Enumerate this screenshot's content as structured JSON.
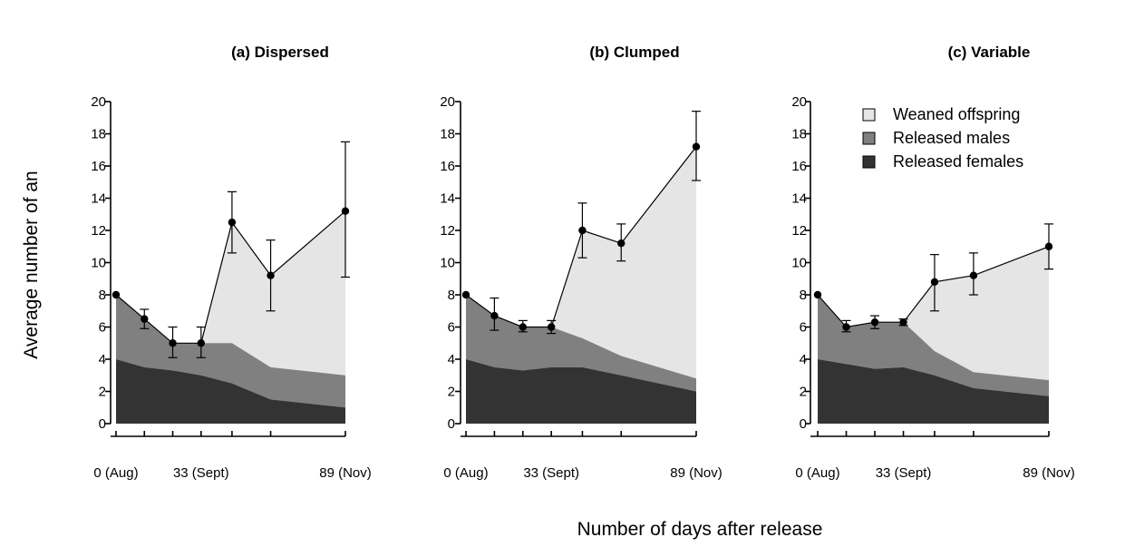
{
  "figure": {
    "ylabel": "Average number of an",
    "xlabel": "Number of days after release",
    "legend": {
      "placement": "top-right of panel (c)",
      "items": [
        {
          "label": "Weaned offspring",
          "color": "#e5e5e5"
        },
        {
          "label": "Released males",
          "color": "#808080"
        },
        {
          "label": "Released females",
          "color": "#333333"
        }
      ]
    }
  },
  "chart_data": [
    {
      "type": "area",
      "title": "(a) Dispersed",
      "xlabel": "Number of days after release",
      "ylabel": "Average number of an",
      "ylim": [
        0,
        20
      ],
      "yticks": [
        0,
        2,
        4,
        6,
        8,
        10,
        12,
        14,
        16,
        18,
        20
      ],
      "xlim": [
        0,
        89
      ],
      "xticks": [
        {
          "value": 0,
          "label": "0 (Aug)"
        },
        {
          "value": 33,
          "label": "33 (Sept)"
        },
        {
          "value": 89,
          "label": "89 (Nov)"
        }
      ],
      "x": [
        0,
        11,
        22,
        33,
        45,
        60,
        89
      ],
      "stacked": true,
      "series": [
        {
          "name": "Released females",
          "color": "#333333",
          "values": [
            4.0,
            3.5,
            3.3,
            3.0,
            2.5,
            1.5,
            1.0
          ]
        },
        {
          "name": "Released males",
          "color": "#808080",
          "values": [
            4.0,
            3.0,
            1.7,
            2.0,
            2.5,
            2.0,
            2.0
          ]
        },
        {
          "name": "Weaned offspring",
          "color": "#e5e5e5",
          "values": [
            0,
            0,
            0,
            0,
            7.5,
            5.7,
            10.2
          ]
        }
      ],
      "total": {
        "values": [
          8.0,
          6.5,
          5.0,
          5.0,
          12.5,
          9.2,
          13.2
        ],
        "err_upper": [
          8.0,
          7.1,
          6.0,
          6.0,
          14.4,
          11.4,
          17.5
        ],
        "err_lower": [
          8.0,
          5.9,
          4.1,
          4.1,
          10.6,
          7.0,
          9.1
        ]
      }
    },
    {
      "type": "area",
      "title": "(b) Clumped",
      "xlabel": "Number of days after release",
      "ylabel": "Average number of an",
      "ylim": [
        0,
        20
      ],
      "yticks": [
        0,
        2,
        4,
        6,
        8,
        10,
        12,
        14,
        16,
        18,
        20
      ],
      "xlim": [
        0,
        89
      ],
      "xticks": [
        {
          "value": 0,
          "label": "0 (Aug)"
        },
        {
          "value": 33,
          "label": "33 (Sept)"
        },
        {
          "value": 89,
          "label": "89 (Nov)"
        }
      ],
      "x": [
        0,
        11,
        22,
        33,
        45,
        60,
        89
      ],
      "stacked": true,
      "series": [
        {
          "name": "Released females",
          "color": "#333333",
          "values": [
            4.0,
            3.5,
            3.3,
            3.5,
            3.5,
            3.0,
            2.0
          ]
        },
        {
          "name": "Released males",
          "color": "#808080",
          "values": [
            4.0,
            3.2,
            2.7,
            2.5,
            1.8,
            1.2,
            0.8
          ]
        },
        {
          "name": "Weaned offspring",
          "color": "#e5e5e5",
          "values": [
            0,
            0,
            0,
            0,
            6.7,
            7.0,
            14.4
          ]
        }
      ],
      "total": {
        "values": [
          8.0,
          6.7,
          6.0,
          6.0,
          12.0,
          11.2,
          17.2
        ],
        "err_upper": [
          8.0,
          7.8,
          6.4,
          6.4,
          13.7,
          12.4,
          19.4
        ],
        "err_lower": [
          8.0,
          5.8,
          5.7,
          5.6,
          10.3,
          10.1,
          15.1
        ]
      }
    },
    {
      "type": "area",
      "title": "(c) Variable",
      "xlabel": "Number of days after release",
      "ylabel": "Average number of an",
      "ylim": [
        0,
        20
      ],
      "yticks": [
        0,
        2,
        4,
        6,
        8,
        10,
        12,
        14,
        16,
        18,
        20
      ],
      "xlim": [
        0,
        89
      ],
      "xticks": [
        {
          "value": 0,
          "label": "0 (Aug)"
        },
        {
          "value": 33,
          "label": "33 (Sept)"
        },
        {
          "value": 89,
          "label": "89 (Nov)"
        }
      ],
      "x": [
        0,
        11,
        22,
        33,
        45,
        60,
        89
      ],
      "stacked": true,
      "series": [
        {
          "name": "Released females",
          "color": "#333333",
          "values": [
            4.0,
            3.7,
            3.4,
            3.5,
            3.0,
            2.2,
            1.7
          ]
        },
        {
          "name": "Released males",
          "color": "#808080",
          "values": [
            4.0,
            2.3,
            2.9,
            2.8,
            1.5,
            1.0,
            1.0
          ]
        },
        {
          "name": "Weaned offspring",
          "color": "#e5e5e5",
          "values": [
            0,
            0,
            0,
            0,
            4.3,
            6.0,
            8.3
          ]
        }
      ],
      "total": {
        "values": [
          8.0,
          6.0,
          6.3,
          6.3,
          8.8,
          9.2,
          11.0
        ],
        "err_upper": [
          8.0,
          6.4,
          6.7,
          6.5,
          10.5,
          10.6,
          12.4
        ],
        "err_lower": [
          8.0,
          5.7,
          5.9,
          6.1,
          7.0,
          8.0,
          9.6
        ]
      }
    }
  ]
}
